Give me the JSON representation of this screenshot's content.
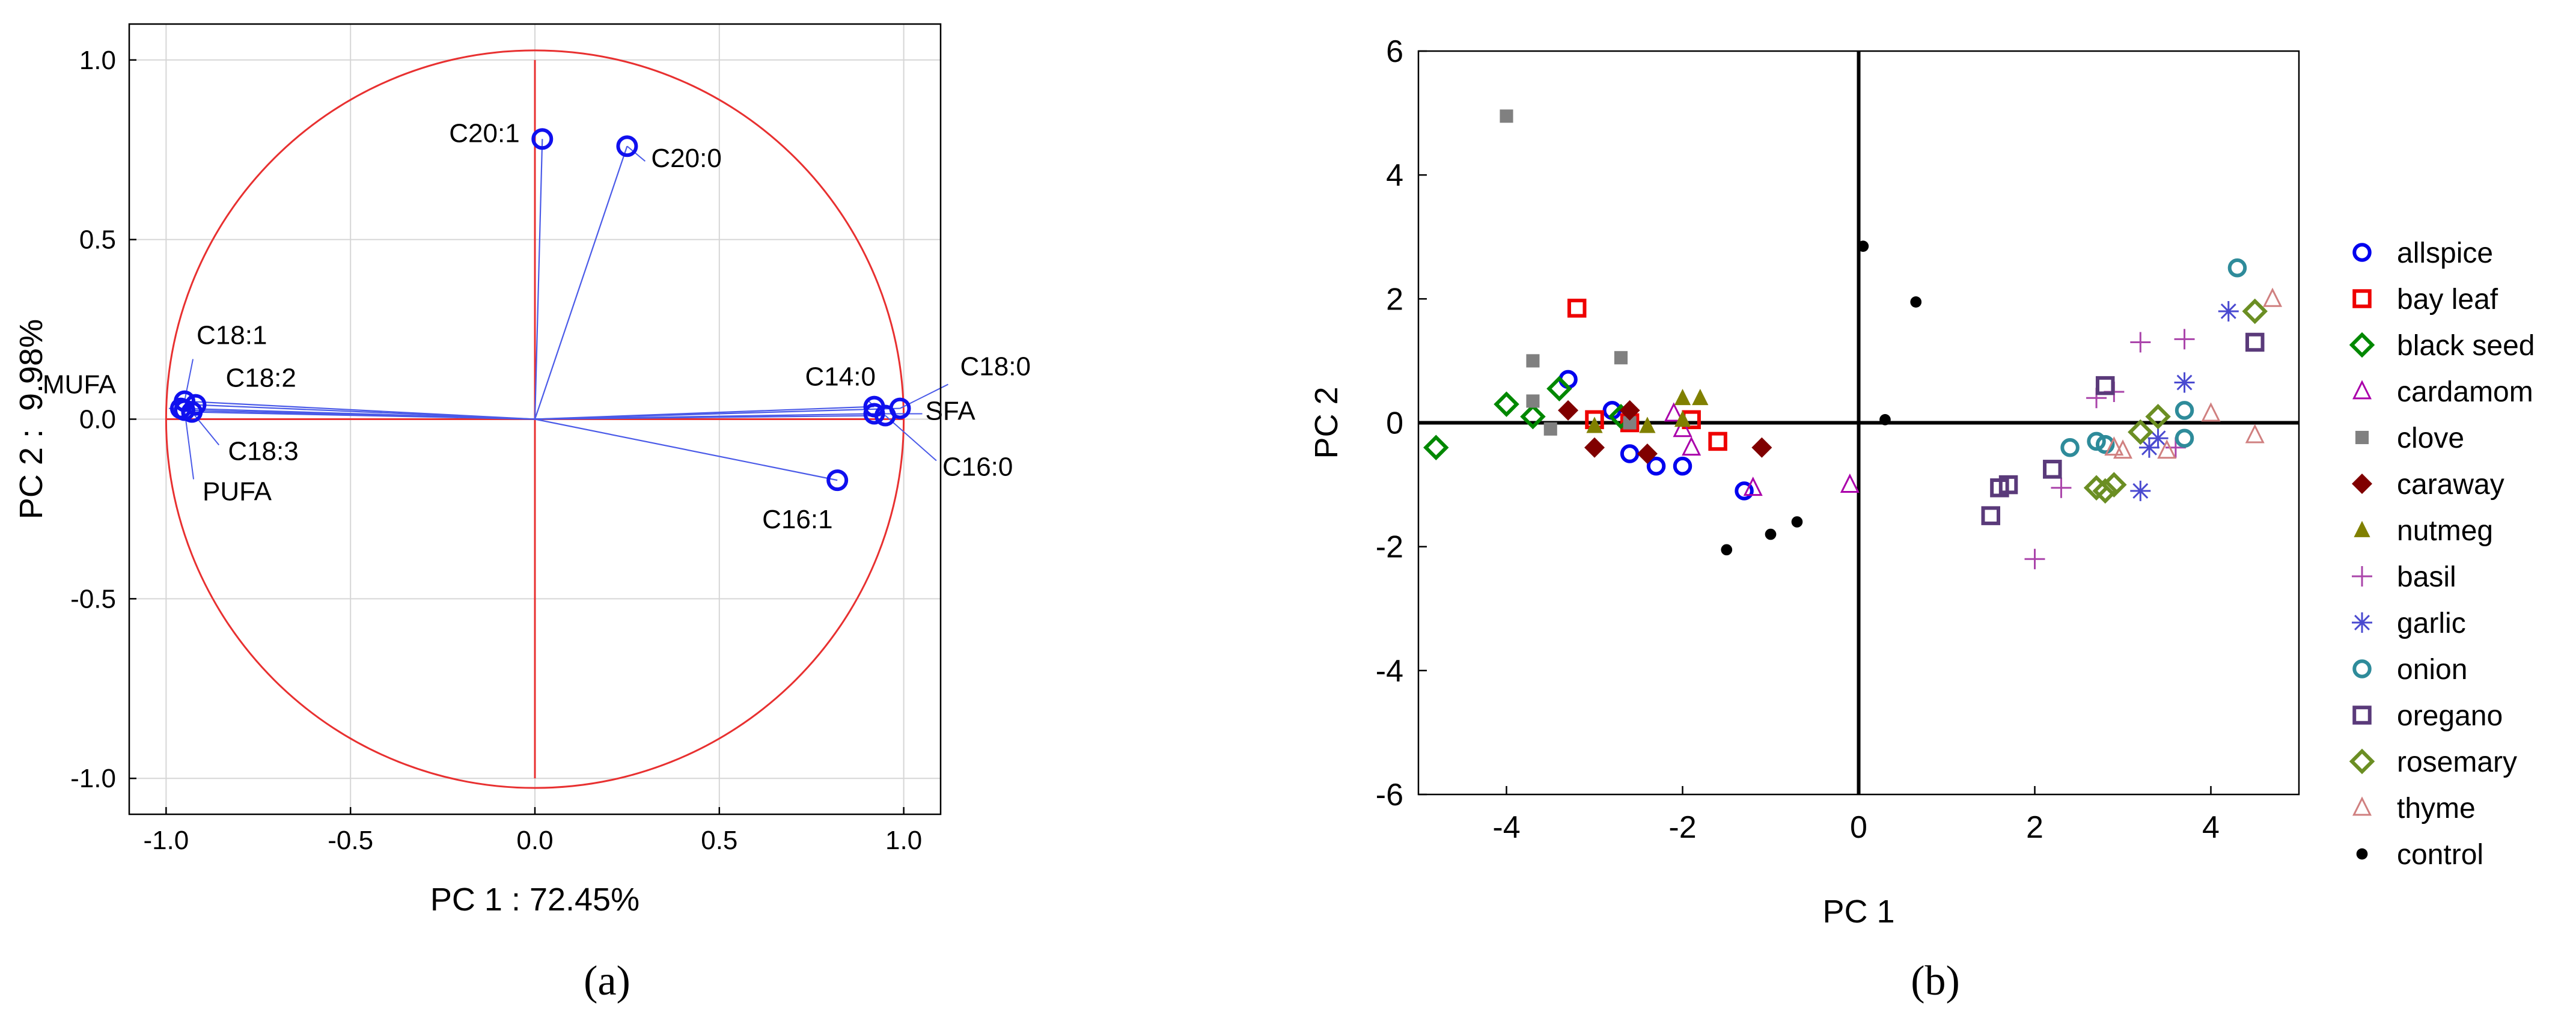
{
  "chart_data": [
    {
      "type": "scatter",
      "subtype": "loadings-circle",
      "panel_label": "(a)",
      "xlabel": "PC 1 : 72.45%",
      "ylabel": "PC 2 :  9.98%",
      "xlim": [
        -1.1,
        1.1
      ],
      "ylim": [
        -1.1,
        1.1
      ],
      "xticks": [
        -1.0,
        -0.5,
        0.0,
        0.5,
        1.0
      ],
      "xtick_labels": [
        "-1.0",
        "-0.5",
        "0.0",
        "0.5",
        "1.0"
      ],
      "yticks": [
        -1.0,
        -0.5,
        0.0,
        0.5,
        1.0
      ],
      "ytick_labels": [
        "-1.0",
        "-0.5",
        "0.0",
        "0.5",
        "1.0"
      ],
      "grid": true,
      "unit_circle": true,
      "points": [
        {
          "label": "C20:1",
          "x": 0.02,
          "y": 0.78
        },
        {
          "label": "C20:0",
          "x": 0.25,
          "y": 0.76
        },
        {
          "label": "C18:1",
          "x": -0.95,
          "y": 0.05
        },
        {
          "label": "C18:2",
          "x": -0.92,
          "y": 0.04
        },
        {
          "label": "MUFA",
          "x": -0.96,
          "y": 0.03
        },
        {
          "label": "C18:3",
          "x": -0.93,
          "y": 0.02
        },
        {
          "label": "PUFA",
          "x": -0.95,
          "y": 0.025
        },
        {
          "label": "C14:0",
          "x": 0.92,
          "y": 0.035
        },
        {
          "label": "C18:0",
          "x": 0.99,
          "y": 0.03
        },
        {
          "label": "SFA",
          "x": 0.92,
          "y": 0.015
        },
        {
          "label": "C16:0",
          "x": 0.95,
          "y": 0.01
        },
        {
          "label": "C16:1",
          "x": 0.82,
          "y": -0.17
        }
      ]
    },
    {
      "type": "scatter",
      "panel_label": "(b)",
      "xlabel": "PC 1",
      "ylabel": "PC 2",
      "xlim": [
        -5,
        5
      ],
      "ylim": [
        -6,
        6
      ],
      "xticks": [
        -4,
        -2,
        0,
        2,
        4
      ],
      "xtick_labels": [
        "-4",
        "-2",
        "0",
        "2",
        "4"
      ],
      "yticks": [
        -6,
        -4,
        -2,
        0,
        2,
        4,
        6
      ],
      "ytick_labels": [
        "-6",
        "-4",
        "-2",
        "0",
        "2",
        "4",
        "6"
      ],
      "legend_position": "right",
      "series": [
        {
          "name": "allspice",
          "color": "#0000ee",
          "marker": "circle",
          "points": [
            [
              -3.3,
              0.7
            ],
            [
              -2.8,
              0.2
            ],
            [
              -2.6,
              -0.5
            ],
            [
              -2.3,
              -0.7
            ],
            [
              -2.0,
              -0.7
            ],
            [
              -1.3,
              -1.1
            ]
          ]
        },
        {
          "name": "bay leaf",
          "color": "#ee0000",
          "marker": "square",
          "points": [
            [
              -3.2,
              1.85
            ],
            [
              -3.0,
              0.05
            ],
            [
              -2.6,
              0.0
            ],
            [
              -1.9,
              0.05
            ],
            [
              -1.6,
              -0.3
            ]
          ]
        },
        {
          "name": "black seed",
          "color": "#008800",
          "marker": "diamond",
          "points": [
            [
              -4.8,
              -0.4
            ],
            [
              -4.0,
              0.3
            ],
            [
              -3.7,
              0.1
            ],
            [
              -3.4,
              0.55
            ],
            [
              -2.7,
              0.1
            ]
          ]
        },
        {
          "name": "cardamom",
          "color": "#aa00aa",
          "marker": "triangle",
          "points": [
            [
              -2.1,
              0.15
            ],
            [
              -2.0,
              -0.1
            ],
            [
              -1.9,
              -0.4
            ],
            [
              -1.2,
              -1.05
            ],
            [
              -0.1,
              -1.0
            ]
          ]
        },
        {
          "name": "clove",
          "color": "#808080",
          "marker": "square-filled",
          "points": [
            [
              -4.0,
              4.95
            ],
            [
              -3.7,
              1.0
            ],
            [
              -3.7,
              0.35
            ],
            [
              -3.5,
              -0.1
            ],
            [
              -2.7,
              1.05
            ],
            [
              -2.6,
              0.0
            ]
          ]
        },
        {
          "name": "caraway",
          "color": "#800000",
          "marker": "diamond-filled",
          "points": [
            [
              -3.3,
              0.2
            ],
            [
              -3.0,
              -0.4
            ],
            [
              -2.6,
              0.2
            ],
            [
              -2.4,
              -0.5
            ],
            [
              -1.1,
              -0.4
            ]
          ]
        },
        {
          "name": "nutmeg",
          "color": "#808000",
          "marker": "triangle-filled",
          "points": [
            [
              -3.0,
              -0.05
            ],
            [
              -2.4,
              -0.05
            ],
            [
              -2.0,
              0.4
            ],
            [
              -1.8,
              0.4
            ],
            [
              -2.0,
              0.05
            ]
          ]
        },
        {
          "name": "basil",
          "color": "#aa44aa",
          "marker": "plus",
          "points": [
            [
              2.0,
              -2.2
            ],
            [
              2.3,
              -1.05
            ],
            [
              2.7,
              0.4
            ],
            [
              2.9,
              0.5
            ],
            [
              3.2,
              1.3
            ],
            [
              3.7,
              1.35
            ],
            [
              3.6,
              -0.4
            ]
          ]
        },
        {
          "name": "garlic",
          "color": "#4a4ad0",
          "marker": "asterisk",
          "points": [
            [
              4.2,
              1.8
            ],
            [
              3.7,
              0.65
            ],
            [
              3.4,
              -0.25
            ],
            [
              3.2,
              -1.1
            ],
            [
              3.3,
              -0.4
            ]
          ]
        },
        {
          "name": "onion",
          "color": "#2e8b9a",
          "marker": "circle",
          "points": [
            [
              4.3,
              2.5
            ],
            [
              3.7,
              0.2
            ],
            [
              3.7,
              -0.25
            ],
            [
              2.7,
              -0.3
            ],
            [
              2.4,
              -0.4
            ],
            [
              2.8,
              -0.35
            ]
          ]
        },
        {
          "name": "oregano",
          "color": "#5a3a7a",
          "marker": "square",
          "points": [
            [
              4.5,
              1.3
            ],
            [
              2.8,
              0.6
            ],
            [
              2.2,
              -0.75
            ],
            [
              1.7,
              -1.0
            ],
            [
              1.6,
              -1.05
            ],
            [
              1.5,
              -1.5
            ]
          ]
        },
        {
          "name": "rosemary",
          "color": "#6b8e23",
          "marker": "diamond",
          "points": [
            [
              4.5,
              1.8
            ],
            [
              3.4,
              0.1
            ],
            [
              3.2,
              -0.15
            ],
            [
              2.9,
              -1.0
            ],
            [
              2.7,
              -1.05
            ],
            [
              2.8,
              -1.1
            ]
          ]
        },
        {
          "name": "thyme",
          "color": "#d08080",
          "marker": "triangle",
          "points": [
            [
              4.7,
              2.0
            ],
            [
              4.0,
              0.15
            ],
            [
              4.5,
              -0.2
            ],
            [
              3.5,
              -0.45
            ],
            [
              3.0,
              -0.45
            ],
            [
              2.9,
              -0.4
            ]
          ]
        },
        {
          "name": "control",
          "color": "#000000",
          "marker": "dot",
          "points": [
            [
              0.05,
              2.85
            ],
            [
              0.65,
              1.95
            ],
            [
              0.3,
              0.05
            ],
            [
              -0.7,
              -1.6
            ],
            [
              -1.0,
              -1.8
            ],
            [
              -1.5,
              -2.05
            ]
          ]
        }
      ]
    }
  ]
}
